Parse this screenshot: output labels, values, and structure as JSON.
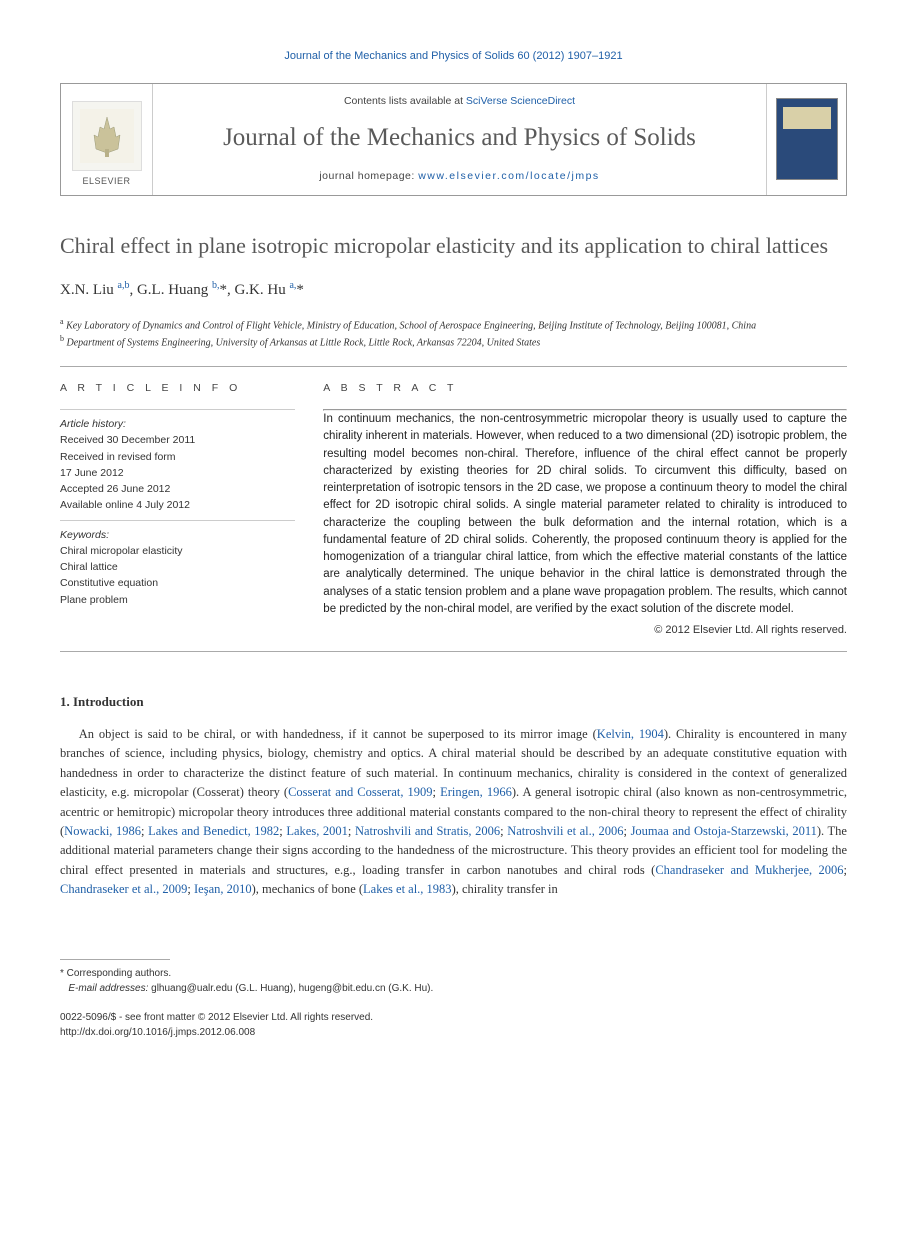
{
  "running_header": "Journal of the Mechanics and Physics of Solids 60 (2012) 1907–1921",
  "masthead": {
    "elsevier_label": "ELSEVIER",
    "contents_prefix": "Contents lists available at ",
    "contents_link": "SciVerse ScienceDirect",
    "journal_title": "Journal of the Mechanics and Physics of Solids",
    "homepage_prefix": "journal homepage: ",
    "homepage_link": "www.elsevier.com/locate/jmps"
  },
  "article": {
    "title": "Chiral effect in plane isotropic micropolar elasticity and its application to chiral lattices",
    "authors_html": "X.N. Liu <sup>a,b</sup>, G.L. Huang <sup>b,</sup><span class='ast'>*</span>, G.K. Hu <sup>a,</sup><span class='ast'>*</span>",
    "affiliations": [
      {
        "marker": "a",
        "text": "Key Laboratory of Dynamics and Control of Flight Vehicle, Ministry of Education, School of Aerospace Engineering, Beijing Institute of Technology, Beijing 100081, China"
      },
      {
        "marker": "b",
        "text": "Department of Systems Engineering, University of Arkansas at Little Rock, Little Rock, Arkansas 72204, United States"
      }
    ]
  },
  "info": {
    "label": "A R T I C L E   I N F O",
    "history_label": "Article history:",
    "received": "Received 30 December 2011",
    "revised1": "Received in revised form",
    "revised2": "17 June 2012",
    "accepted": "Accepted 26 June 2012",
    "online": "Available online 4 July 2012",
    "keywords_label": "Keywords:",
    "keywords": [
      "Chiral micropolar elasticity",
      "Chiral lattice",
      "Constitutive equation",
      "Plane problem"
    ]
  },
  "abstract": {
    "label": "A B S T R A C T",
    "text": "In continuum mechanics, the non-centrosymmetric micropolar theory is usually used to capture the chirality inherent in materials. However, when reduced to a two dimensional (2D) isotropic problem, the resulting model becomes non-chiral. Therefore, influence of the chiral effect cannot be properly characterized by existing theories for 2D chiral solids. To circumvent this difficulty, based on reinterpretation of isotropic tensors in the 2D case, we propose a continuum theory to model the chiral effect for 2D isotropic chiral solids. A single material parameter related to chirality is introduced to characterize the coupling between the bulk deformation and the internal rotation, which is a fundamental feature of 2D chiral solids. Coherently, the proposed continuum theory is applied for the homogenization of a triangular chiral lattice, from which the effective material constants of the lattice are analytically determined. The unique behavior in the chiral lattice is demonstrated through the analyses of a static tension problem and a plane wave propagation problem. The results, which cannot be predicted by the non-chiral model, are verified by the exact solution of the discrete model.",
    "copyright": "© 2012 Elsevier Ltd. All rights reserved."
  },
  "sections": {
    "intro_heading": "1.  Introduction",
    "intro_body": "An object is said to be chiral, or with handedness, if it cannot be superposed to its mirror image (<a>Kelvin, 1904</a>). Chirality is encountered in many branches of science, including physics, biology, chemistry and optics. A chiral material should be described by an adequate constitutive equation with handedness in order to characterize the distinct feature of such material. In continuum mechanics, chirality is considered in the context of generalized elasticity, e.g. micropolar (Cosserat) theory (<a>Cosserat and Cosserat, 1909</a>; <a>Eringen, 1966</a>). A general isotropic chiral (also known as non-centrosymmetric, acentric or hemitropic) micropolar theory introduces three additional material constants compared to the non-chiral theory to represent the effect of chirality (<a>Nowacki, 1986</a>; <a>Lakes and Benedict, 1982</a>; <a>Lakes, 2001</a>; <a>Natroshvili and Stratis, 2006</a>; <a>Natroshvili et al., 2006</a>; <a>Joumaa and Ostoja-Starzewski, 2011</a>). The additional material parameters change their signs according to the handedness of the microstructure. This theory provides an efficient tool for modeling the chiral effect presented in materials and structures, e.g., loading transfer in carbon nanotubes and chiral rods (<a>Chandraseker and Mukherjee, 2006</a>; <a>Chandraseker et al., 2009</a>; <a>Ieşan, 2010</a>), mechanics of bone (<a>Lakes et al., 1983</a>), chirality transfer in"
  },
  "footnotes": {
    "corresponding": "* Corresponding authors.",
    "email_label": "E-mail addresses:",
    "emails": " glhuang@ualr.edu (G.L. Huang), hugeng@bit.edu.cn (G.K. Hu)."
  },
  "bottom": {
    "issn_line": "0022-5096/$ - see front matter © 2012 Elsevier Ltd. All rights reserved.",
    "doi_line": "http://dx.doi.org/10.1016/j.jmps.2012.06.008"
  }
}
